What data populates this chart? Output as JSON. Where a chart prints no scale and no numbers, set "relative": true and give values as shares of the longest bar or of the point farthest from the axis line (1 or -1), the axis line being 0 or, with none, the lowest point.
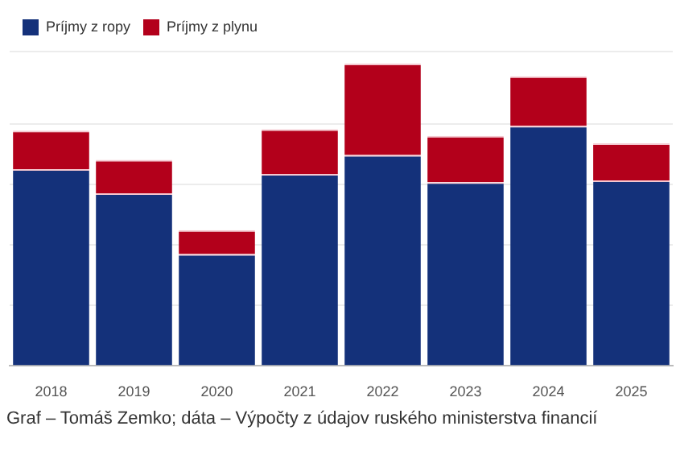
{
  "chart_data": {
    "type": "bar",
    "stacked": true,
    "relative": true,
    "grid": "y",
    "legend": "top left",
    "categories": [
      "2018",
      "2019",
      "2020",
      "2021",
      "2022",
      "2023",
      "2024",
      "2025"
    ],
    "series": [
      {
        "name": "Príjmy z ropy",
        "color": "#14317a",
        "values": [
          0.651,
          0.571,
          0.37,
          0.635,
          0.698,
          0.608,
          0.794,
          0.614
        ]
      },
      {
        "name": "Príjmy z plynu",
        "color": "#b3001b",
        "values": [
          0.127,
          0.111,
          0.079,
          0.148,
          0.302,
          0.153,
          0.164,
          0.122
        ]
      }
    ],
    "annotations": [
      "Graf – Tomáš Zemko; dáta – Výpočty z údajov ruského ministerstva financií"
    ]
  }
}
